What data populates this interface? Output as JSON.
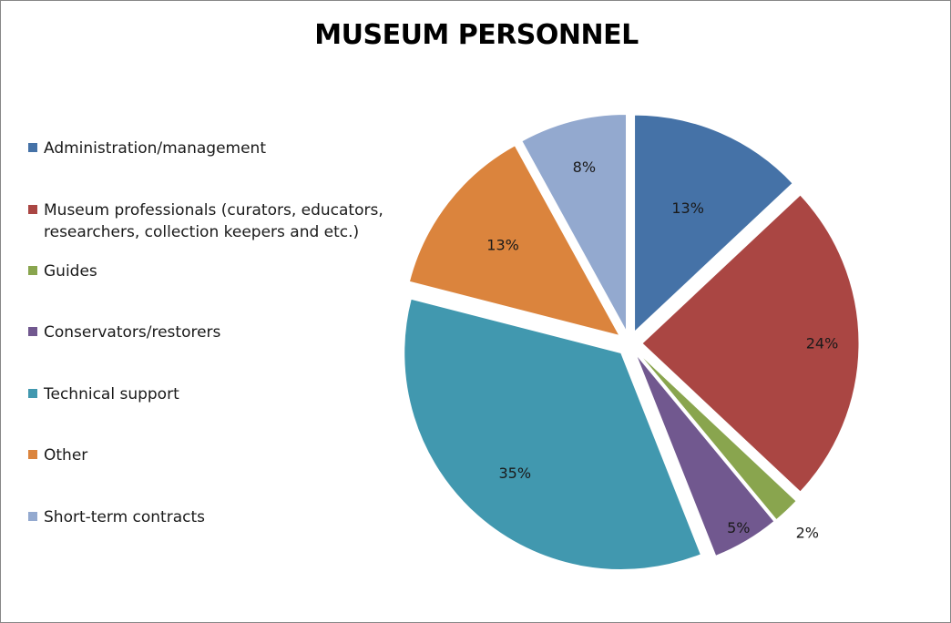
{
  "chart_data": {
    "type": "pie",
    "title": "MUSEUM PERSONNEL",
    "legend_position": "left",
    "slices": [
      {
        "name": "Administration/management",
        "value": 13,
        "label": "13%",
        "color": "#4572A7"
      },
      {
        "name": "Museum professionals (curators, educators, researchers, collection keepers and etc.)",
        "value": 24,
        "label": "24%",
        "color": "#AA4643"
      },
      {
        "name": "Guides",
        "value": 2,
        "label": "2%",
        "color": "#89A54E"
      },
      {
        "name": "Conservators/restorers",
        "value": 5,
        "label": "5%",
        "color": "#71588F"
      },
      {
        "name": "Technical support",
        "value": 35,
        "label": "35%",
        "color": "#4198AF"
      },
      {
        "name": "Other",
        "value": 13,
        "label": "13%",
        "color": "#DB843D"
      },
      {
        "name": "Short-term contracts",
        "value": 8,
        "label": "8%",
        "color": "#93A9CF"
      }
    ]
  }
}
